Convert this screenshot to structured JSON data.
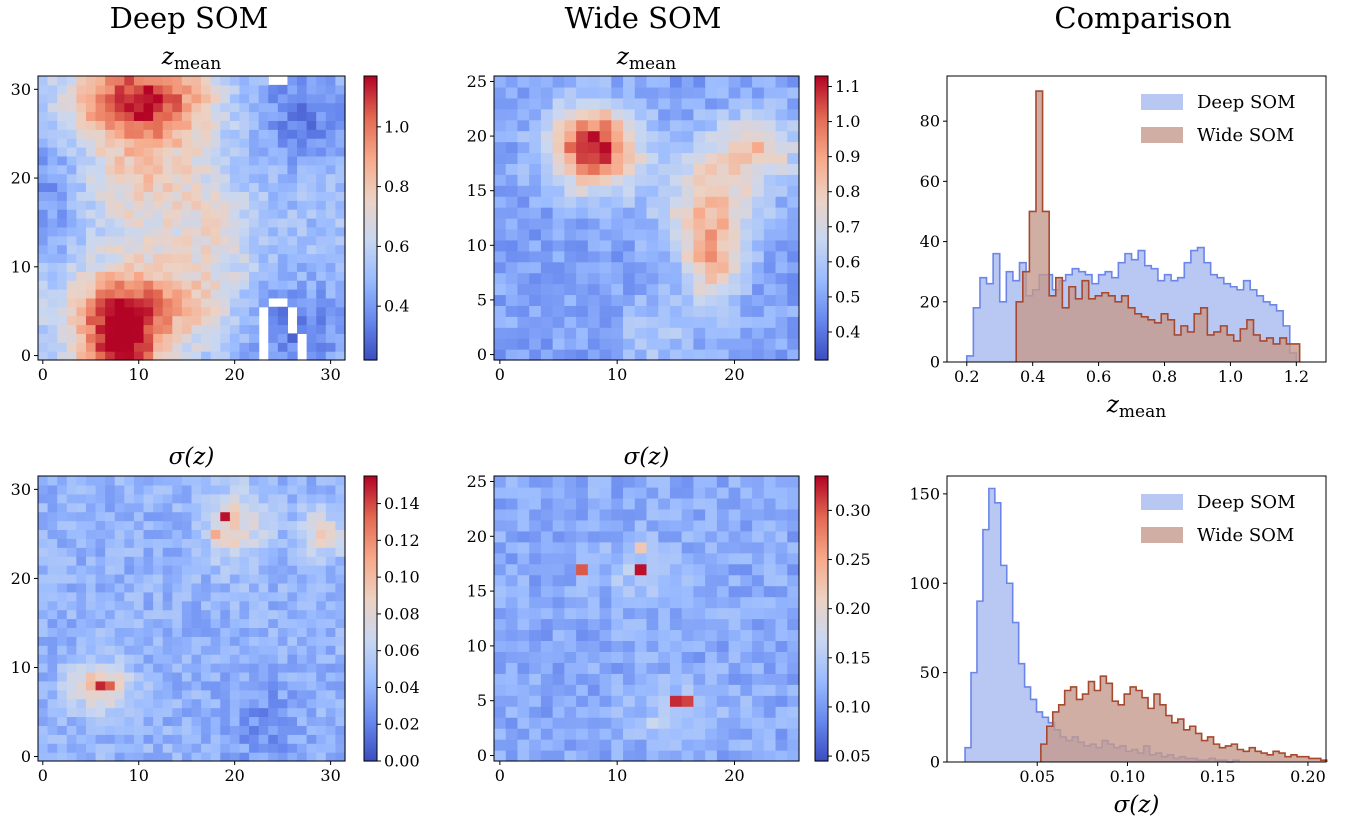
{
  "columns": {
    "deep": "Deep SOM",
    "wide": "Wide SOM",
    "comparison": "Comparison"
  },
  "colors": {
    "cmap": [
      "#3b4cc0",
      "#6788ee",
      "#9abbff",
      "#c9d7f0",
      "#edd1c2",
      "#f7a889",
      "#e26952",
      "#b40426"
    ],
    "deep_fill": "#a8baf0",
    "deep_line": "#6b86e8",
    "wide_fill": "#c49a8c",
    "wide_line": "#a8492f"
  },
  "chart_data": [
    {
      "id": "deep_zmean",
      "type": "heatmap",
      "title": "z",
      "title_sub": "mean",
      "grid_size": 32,
      "xlim": [
        -0.5,
        31.5
      ],
      "ylim": [
        -0.5,
        31.5
      ],
      "xticks": [
        0,
        10,
        20,
        30
      ],
      "yticks": [
        0,
        10,
        20,
        30
      ],
      "value_range": [
        0.22,
        1.17
      ],
      "colorbar_ticks": [
        0.4,
        0.6,
        0.8,
        1.0
      ],
      "colorbar_labels": [
        "0.4",
        "0.6",
        "0.8",
        "1.0"
      ],
      "features": {
        "base": 0.52,
        "blobs": [
          {
            "x": 10,
            "y": 29,
            "sx": 5,
            "sy": 3,
            "amp": 0.55
          },
          {
            "x": 11,
            "y": 21,
            "sx": 4.5,
            "sy": 6,
            "amp": 0.28
          },
          {
            "x": 8,
            "y": 1,
            "sx": 3,
            "sy": 4,
            "amp": 0.62
          },
          {
            "x": 11,
            "y": 6,
            "sx": 6,
            "sy": 3.5,
            "amp": 0.36
          },
          {
            "x": 18,
            "y": 14,
            "sx": 2.5,
            "sy": 4,
            "amp": 0.15
          },
          {
            "x": 26,
            "y": 3,
            "sx": 4,
            "sy": 4,
            "amp": -0.2
          },
          {
            "x": 27,
            "y": 27,
            "sx": 4,
            "sy": 4,
            "amp": -0.18
          },
          {
            "x": 1,
            "y": 18,
            "sx": 2,
            "sy": 6,
            "amp": -0.14
          }
        ],
        "blank_cells": [
          [
            23,
            0
          ],
          [
            23,
            1
          ],
          [
            23,
            2
          ],
          [
            23,
            3
          ],
          [
            23,
            4
          ],
          [
            23,
            5
          ],
          [
            24,
            6
          ],
          [
            25,
            6
          ],
          [
            26,
            5
          ],
          [
            26,
            4
          ],
          [
            26,
            3
          ],
          [
            27,
            2
          ],
          [
            27,
            1
          ],
          [
            27,
            0
          ],
          [
            24,
            31
          ],
          [
            25,
            31
          ]
        ]
      }
    },
    {
      "id": "wide_zmean",
      "type": "heatmap",
      "title": "z",
      "title_sub": "mean",
      "grid_size": 26,
      "xlim": [
        -0.5,
        25.5
      ],
      "ylim": [
        -0.5,
        25.5
      ],
      "xticks": [
        0,
        10,
        20
      ],
      "yticks": [
        0,
        5,
        10,
        15,
        20,
        25
      ],
      "value_range": [
        0.32,
        1.13
      ],
      "colorbar_ticks": [
        0.4,
        0.5,
        0.6,
        0.7,
        0.8,
        0.9,
        1.0,
        1.1
      ],
      "colorbar_labels": [
        "0.4",
        "0.5",
        "0.6",
        "0.7",
        "0.8",
        "0.9",
        "1.0",
        "1.1"
      ],
      "features": {
        "base": 0.5,
        "blobs": [
          {
            "x": 8,
            "y": 19,
            "sx": 2.6,
            "sy": 2.6,
            "amp": 0.62
          },
          {
            "x": 18,
            "y": 14,
            "sx": 3,
            "sy": 3.5,
            "amp": 0.3
          },
          {
            "x": 18,
            "y": 8,
            "sx": 1.6,
            "sy": 3,
            "amp": 0.3
          },
          {
            "x": 22,
            "y": 19,
            "sx": 2.5,
            "sy": 2,
            "amp": 0.3
          },
          {
            "x": 13,
            "y": 2,
            "sx": 2,
            "sy": 2,
            "amp": 0.12
          }
        ],
        "blank_cells": []
      }
    },
    {
      "id": "comp_zmean",
      "type": "area",
      "title": "",
      "xlabel": "z",
      "xlabel_sub": "mean",
      "xlim": [
        0.14,
        1.29
      ],
      "ylim": [
        0,
        95
      ],
      "xticks": [
        0.2,
        0.4,
        0.6,
        0.8,
        1.0,
        1.2
      ],
      "xtick_labels": [
        "0.2",
        "0.4",
        "0.6",
        "0.8",
        "1.0",
        "1.2"
      ],
      "yticks": [
        0,
        20,
        40,
        60,
        80
      ],
      "ytick_labels": [
        "0",
        "20",
        "40",
        "60",
        "80"
      ],
      "legend": "top-right",
      "series": [
        {
          "name": "Deep SOM",
          "bin_start": 0.2,
          "bin_width": 0.02,
          "values": [
            2,
            18,
            28,
            26,
            36,
            20,
            30,
            27,
            33,
            22,
            24,
            29,
            29,
            24,
            27,
            29,
            31,
            30,
            29,
            26,
            29,
            30,
            28,
            33,
            36,
            34,
            37,
            32,
            31,
            27,
            29,
            27,
            28,
            33,
            37,
            38,
            33,
            29,
            28,
            26,
            25,
            24,
            27,
            24,
            22,
            20,
            19,
            17,
            12,
            3
          ]
        },
        {
          "name": "Wide SOM",
          "bin_start": 0.35,
          "bin_width": 0.02,
          "values": [
            20,
            30,
            50,
            90,
            50,
            22,
            28,
            18,
            25,
            21,
            27,
            21,
            22,
            23,
            22,
            20,
            22,
            18,
            16,
            15,
            14,
            13,
            16,
            14,
            9,
            12,
            10,
            16,
            18,
            9,
            10,
            12,
            9,
            7,
            11,
            14,
            9,
            7,
            8,
            6,
            8,
            6,
            6
          ]
        }
      ]
    },
    {
      "id": "deep_sigma",
      "type": "heatmap",
      "title": "σ(z)",
      "grid_size": 32,
      "xlim": [
        -0.5,
        31.5
      ],
      "ylim": [
        -0.5,
        31.5
      ],
      "xticks": [
        0,
        10,
        20,
        30
      ],
      "yticks": [
        0,
        10,
        20,
        30
      ],
      "value_range": [
        0.0,
        0.155
      ],
      "colorbar_ticks": [
        0.0,
        0.02,
        0.04,
        0.06,
        0.08,
        0.1,
        0.12,
        0.14
      ],
      "colorbar_labels": [
        "0.00",
        "0.02",
        "0.04",
        "0.06",
        "0.08",
        "0.10",
        "0.12",
        "0.14"
      ],
      "features": {
        "base": 0.042,
        "blobs": [
          {
            "x": 6,
            "y": 8,
            "sx": 2.2,
            "sy": 1.8,
            "amp": 0.06
          },
          {
            "x": 20,
            "y": 26,
            "sx": 2.2,
            "sy": 3,
            "amp": 0.045
          },
          {
            "x": 29,
            "y": 25,
            "sx": 1.8,
            "sy": 2,
            "amp": 0.04
          },
          {
            "x": 23,
            "y": 4,
            "sx": 3,
            "sy": 4,
            "amp": -0.015
          }
        ],
        "hot_cells": [
          [
            6,
            8,
            0.148
          ],
          [
            7,
            8,
            0.135
          ],
          [
            19,
            27,
            0.152
          ],
          [
            18,
            25,
            0.11
          ]
        ],
        "blank_cells": []
      }
    },
    {
      "id": "wide_sigma",
      "type": "heatmap",
      "title": "σ(z)",
      "grid_size": 26,
      "xlim": [
        -0.5,
        25.5
      ],
      "ylim": [
        -0.5,
        25.5
      ],
      "xticks": [
        0,
        10,
        20
      ],
      "yticks": [
        0,
        5,
        10,
        15,
        20,
        25
      ],
      "value_range": [
        0.045,
        0.335
      ],
      "colorbar_ticks": [
        0.05,
        0.1,
        0.15,
        0.2,
        0.25,
        0.3
      ],
      "colorbar_labels": [
        "0.05",
        "0.10",
        "0.15",
        "0.20",
        "0.25",
        "0.30"
      ],
      "features": {
        "base": 0.115,
        "blobs": [
          {
            "x": 12,
            "y": 17,
            "sx": 3,
            "sy": 2,
            "amp": 0.03
          },
          {
            "x": 15,
            "y": 4,
            "sx": 3,
            "sy": 2,
            "amp": 0.03
          }
        ],
        "hot_cells": [
          [
            7,
            17,
            0.3
          ],
          [
            12,
            17,
            0.33
          ],
          [
            12,
            19,
            0.22
          ],
          [
            15,
            5,
            0.32
          ],
          [
            16,
            5,
            0.31
          ],
          [
            13,
            3,
            0.17
          ]
        ],
        "blank_cells": []
      }
    },
    {
      "id": "comp_sigma",
      "type": "area",
      "title": "",
      "xlabel": "σ(z)",
      "xlabel_sub": "",
      "xlim": [
        0.0,
        0.21
      ],
      "ylim": [
        0,
        160
      ],
      "xticks": [
        0.05,
        0.1,
        0.15,
        0.2
      ],
      "xtick_labels": [
        "0.05",
        "0.10",
        "0.15",
        "0.20"
      ],
      "yticks": [
        0,
        50,
        100,
        150
      ],
      "ytick_labels": [
        "0",
        "50",
        "100",
        "150"
      ],
      "legend": "top-right",
      "series": [
        {
          "name": "Deep SOM",
          "bin_start": 0.01,
          "bin_width": 0.0033,
          "values": [
            8,
            50,
            90,
            130,
            153,
            145,
            110,
            100,
            78,
            55,
            42,
            35,
            28,
            25,
            22,
            18,
            14,
            12,
            14,
            11,
            9,
            10,
            8,
            12,
            10,
            8,
            9,
            6,
            7,
            5,
            9,
            4,
            5,
            3,
            4,
            2,
            3,
            2,
            2,
            1,
            1,
            2,
            1,
            1,
            0,
            1
          ]
        },
        {
          "name": "Wide SOM",
          "bin_start": 0.052,
          "bin_width": 0.0033,
          "values": [
            10,
            20,
            28,
            32,
            40,
            42,
            35,
            38,
            45,
            40,
            48,
            44,
            34,
            32,
            38,
            42,
            40,
            36,
            30,
            38,
            32,
            26,
            22,
            24,
            18,
            20,
            16,
            12,
            14,
            10,
            8,
            9,
            10,
            7,
            6,
            8,
            6,
            5,
            4,
            6,
            5,
            3,
            4,
            3,
            3,
            2,
            2,
            1
          ]
        }
      ]
    }
  ]
}
